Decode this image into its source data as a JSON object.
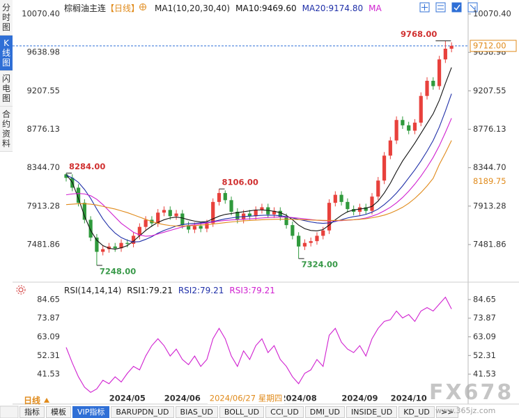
{
  "ui": {
    "side_tabs": [
      "分时图",
      "K线图",
      "闪电图",
      "合约资料"
    ],
    "period": "日线",
    "bottom_tabs": [
      "指标",
      "模板",
      "VIP指标",
      "BARUPDN_UD",
      "BIAS_UD",
      "BOLL_UD",
      "CCI_UD",
      "DMI_UD",
      "INSIDE_UD",
      "KD_UD",
      ">>"
    ],
    "watermark": [
      "FX678",
      "www.365jz.com"
    ]
  },
  "chart_data": [
    {
      "type": "candlestick",
      "title": "棕榈油主连",
      "subtitle": "【日线】",
      "indicator": "MA1(10,20,30,40)",
      "cursor_label": "2024/06/27 星期四",
      "up_color": "#e8413c",
      "down_color": "#2f9a3c",
      "categories": [
        null,
        null,
        null,
        null,
        null,
        null,
        null,
        null,
        null,
        null,
        "2024/05",
        null,
        null,
        null,
        null,
        null,
        null,
        null,
        null,
        "2024/06",
        null,
        null,
        null,
        null,
        null,
        null,
        null,
        null,
        null,
        null,
        null,
        null,
        null,
        null,
        null,
        null,
        null,
        null,
        "2024/08",
        null,
        null,
        null,
        null,
        null,
        null,
        null,
        null,
        null,
        "2024/09",
        null,
        null,
        null,
        null,
        null,
        null,
        null,
        "2024/10",
        null,
        null,
        null,
        null,
        null,
        null,
        null
      ],
      "open": [
        8270,
        8230,
        8120,
        7950,
        7760,
        7560,
        7400,
        7430,
        7460,
        7440,
        7500,
        7490,
        7580,
        7680,
        7760,
        7720,
        7840,
        7870,
        7800,
        7830,
        7700,
        7650,
        7690,
        7660,
        7720,
        7960,
        8060,
        7980,
        7850,
        7760,
        7830,
        7800,
        7870,
        7900,
        7820,
        7860,
        7790,
        7700,
        7580,
        7460,
        7500,
        7520,
        7580,
        7640,
        7950,
        8040,
        7960,
        7880,
        7850,
        7900,
        7860,
        8020,
        8200,
        8480,
        8650,
        8880,
        8820,
        8760,
        8850,
        9150,
        9320,
        9260,
        9560,
        9680
      ],
      "high": [
        8284,
        8270,
        8160,
        7990,
        7800,
        7600,
        7470,
        7500,
        7500,
        7540,
        7540,
        7620,
        7720,
        7800,
        7800,
        7880,
        7910,
        7910,
        7870,
        7870,
        7740,
        7730,
        7730,
        7760,
        8000,
        8106,
        8090,
        8020,
        7890,
        7870,
        7870,
        7910,
        7940,
        7940,
        7900,
        7900,
        7830,
        7740,
        7620,
        7540,
        7560,
        7620,
        7680,
        7990,
        8080,
        8080,
        8000,
        7920,
        7940,
        7940,
        8060,
        8240,
        8520,
        8690,
        8920,
        8920,
        8860,
        8890,
        9190,
        9360,
        9360,
        9600,
        9768,
        9752
      ],
      "low": [
        8190,
        8080,
        7910,
        7720,
        7520,
        7248,
        7360,
        7390,
        7400,
        7400,
        7450,
        7450,
        7540,
        7640,
        7680,
        7680,
        7800,
        7760,
        7760,
        7660,
        7610,
        7610,
        7620,
        7620,
        7680,
        7920,
        7940,
        7810,
        7720,
        7720,
        7760,
        7760,
        7830,
        7780,
        7780,
        7750,
        7660,
        7540,
        7324,
        7420,
        7460,
        7480,
        7540,
        7600,
        7910,
        7920,
        7840,
        7810,
        7810,
        7820,
        7820,
        7980,
        8160,
        8440,
        8610,
        8780,
        8720,
        8720,
        8810,
        9110,
        9220,
        9220,
        9520,
        9640
      ],
      "close": [
        8230,
        8120,
        7950,
        7760,
        7560,
        7400,
        7430,
        7460,
        7440,
        7500,
        7490,
        7580,
        7680,
        7760,
        7720,
        7840,
        7870,
        7800,
        7830,
        7700,
        7650,
        7690,
        7660,
        7720,
        7960,
        8060,
        7980,
        7850,
        7760,
        7830,
        7800,
        7870,
        7900,
        7820,
        7860,
        7790,
        7700,
        7580,
        7460,
        7500,
        7520,
        7580,
        7640,
        7950,
        8040,
        7960,
        7880,
        7850,
        7900,
        7860,
        8020,
        8200,
        8480,
        8650,
        8880,
        8820,
        8760,
        8850,
        9150,
        9320,
        9260,
        9560,
        9680,
        9712
      ],
      "series": [
        {
          "name": "MA10:9469.60",
          "color": "#111111",
          "values": [
            8270,
            8180,
            8000,
            7800,
            7640,
            7530,
            7470,
            7440,
            7430,
            7445,
            7470,
            7520,
            7580,
            7640,
            7690,
            7730,
            7760,
            7780,
            7790,
            7780,
            7760,
            7745,
            7735,
            7740,
            7770,
            7800,
            7820,
            7830,
            7840,
            7850,
            7860,
            7870,
            7870,
            7865,
            7855,
            7840,
            7810,
            7760,
            7700,
            7660,
            7640,
            7635,
            7650,
            7700,
            7760,
            7810,
            7850,
            7870,
            7880,
            7890,
            7910,
            7970,
            8060,
            8170,
            8300,
            8420,
            8520,
            8620,
            8730,
            8840,
            8950,
            9100,
            9290,
            9469.6
          ]
        },
        {
          "name": "MA20:9174.80",
          "color": "#1f2fa8",
          "values": [
            8260,
            8230,
            8180,
            8100,
            8000,
            7880,
            7770,
            7680,
            7610,
            7560,
            7530,
            7510,
            7515,
            7540,
            7570,
            7610,
            7640,
            7665,
            7690,
            7705,
            7715,
            7720,
            7725,
            7730,
            7740,
            7755,
            7770,
            7780,
            7790,
            7795,
            7800,
            7805,
            7810,
            7812,
            7810,
            7805,
            7795,
            7780,
            7765,
            7750,
            7735,
            7725,
            7720,
            7725,
            7740,
            7760,
            7780,
            7795,
            7805,
            7820,
            7845,
            7880,
            7930,
            7990,
            8060,
            8140,
            8230,
            8320,
            8420,
            8530,
            8650,
            8800,
            8980,
            9174.8
          ]
        },
        {
          "name": "MA",
          "color": "#d020d0",
          "values": [
            8040,
            8050,
            8055,
            8050,
            8030,
            7990,
            7930,
            7860,
            7790,
            7720,
            7670,
            7620,
            7590,
            7575,
            7580,
            7600,
            7620,
            7640,
            7660,
            7680,
            7695,
            7705,
            7715,
            7725,
            7735,
            7745,
            7752,
            7758,
            7762,
            7766,
            7770,
            7775,
            7780,
            7785,
            7788,
            7790,
            7790,
            7785,
            7778,
            7770,
            7762,
            7755,
            7750,
            7748,
            7748,
            7750,
            7755,
            7760,
            7768,
            7780,
            7800,
            7825,
            7860,
            7900,
            7950,
            8010,
            8080,
            8160,
            8250,
            8350,
            8460,
            8590,
            8740,
            8900
          ]
        },
        {
          "color": "#e08a1a",
          "values": [
            7930,
            7935,
            7940,
            7940,
            7935,
            7925,
            7910,
            7895,
            7880,
            7860,
            7840,
            7815,
            7790,
            7765,
            7740,
            7720,
            7705,
            7695,
            7690,
            7690,
            7692,
            7695,
            7700,
            7705,
            7712,
            7720,
            7728,
            7735,
            7742,
            7748,
            7752,
            7756,
            7760,
            7763,
            7765,
            7766,
            7766,
            7765,
            7763,
            7760,
            7757,
            7755,
            7753,
            7752,
            7752,
            7754,
            7757,
            7760,
            7765,
            7772,
            7782,
            7795,
            7812,
            7835,
            7865,
            7900,
            7945,
            8000,
            8065,
            8140,
            8225,
            8380,
            8510,
            8650
          ]
        }
      ],
      "annotations": [
        {
          "value": 9768,
          "label": "9768.00"
        },
        {
          "value": 8284,
          "label": "8284.00"
        },
        {
          "value": 8106,
          "label": "8106.00"
        },
        {
          "value": 7248,
          "label": "7248.00"
        },
        {
          "value": 7324,
          "label": "7324.00"
        }
      ],
      "last_price": {
        "value": 9712,
        "label": "9712.00",
        "color": "#e08a1a",
        "line_color": "#2f6fd6"
      },
      "axis_marker": {
        "value": 8189.75,
        "color": "#e08a1a"
      },
      "ylim": [
        7059.6,
        10164.3
      ],
      "yticks": [
        {
          "value": 10070.4,
          "label": "10070.40"
        },
        9638.98,
        9207.55,
        8776.13,
        {
          "value": 8344.7,
          "label": "8344.70"
        },
        7913.28,
        7481.86
      ],
      "grid": false
    },
    {
      "type": "line",
      "indicator": "RSI(14,14,14)",
      "indicator_labels": [
        {
          "text": "RSI1:79.21",
          "color": "#111111"
        },
        {
          "text": "RSI2:79.21",
          "color": "#1f2fa8"
        }
      ],
      "series": [
        {
          "name": "RSI3:79.21",
          "color": "#d020d0",
          "values": [
            57,
            48,
            40,
            34,
            31,
            33,
            38,
            36,
            40,
            37,
            42,
            46,
            44,
            52,
            58,
            62,
            58,
            52,
            56,
            50,
            47,
            52,
            46,
            50,
            62,
            68,
            62,
            52,
            46,
            55,
            50,
            58,
            62,
            54,
            58,
            50,
            46,
            40,
            36,
            42,
            44,
            50,
            46,
            64,
            68,
            60,
            56,
            54,
            58,
            52,
            62,
            68,
            72,
            73,
            78,
            74,
            76,
            72,
            78,
            80,
            78,
            82,
            86,
            79.21
          ]
        }
      ],
      "ylim": [
        30.27,
        89.47
      ],
      "yticks": [
        84.65,
        73.87,
        63.09,
        52.31,
        41.53
      ],
      "grid": false
    }
  ]
}
